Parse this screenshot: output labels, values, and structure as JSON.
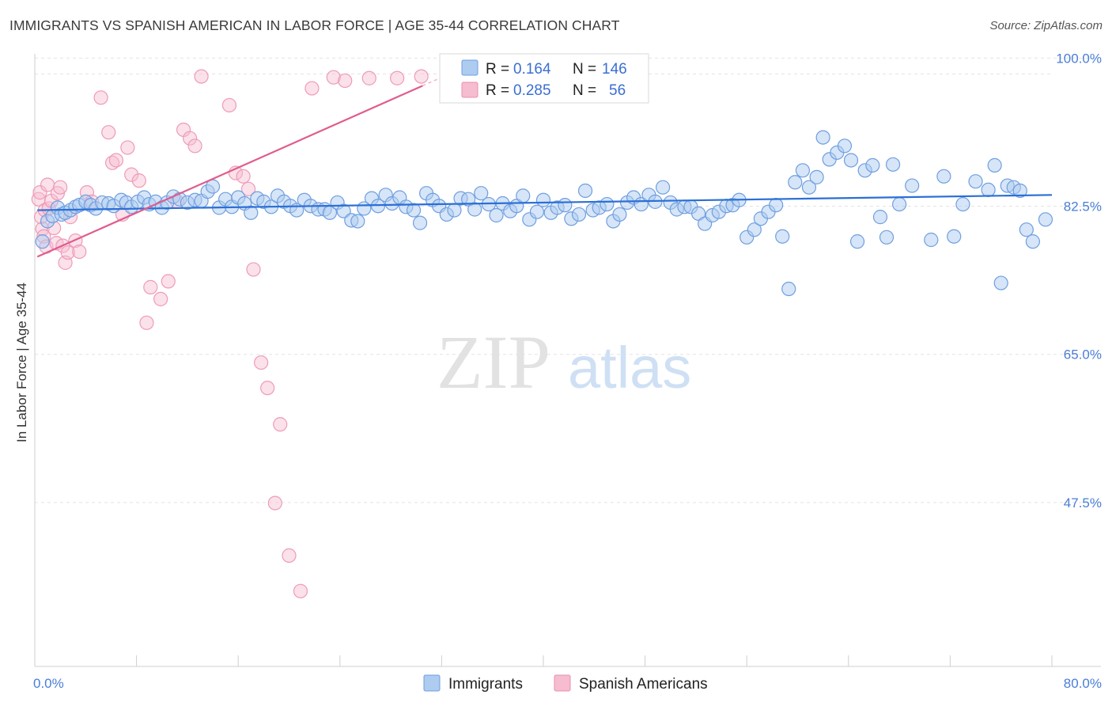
{
  "header": {
    "title": "IMMIGRANTS VS SPANISH AMERICAN IN LABOR FORCE | AGE 35-44 CORRELATION CHART",
    "source": "Source: ZipAtlas.com"
  },
  "watermark": {
    "zip": "ZIP",
    "atlas": "atlas"
  },
  "legend": {
    "rows": [
      {
        "r_label": "R =",
        "r_value": "0.164",
        "n_label": "N =",
        "n_value": "146",
        "color": "#aecbf0"
      },
      {
        "r_label": "R =",
        "r_value": "0.285",
        "n_label": "N =",
        "n_value": "56",
        "color": "#f6bcd0"
      }
    ]
  },
  "bottom_legend": [
    "Immigrants",
    "Spanish Americans"
  ],
  "chart_data": {
    "type": "scatter",
    "title": "IMMIGRANTS VS SPANISH AMERICAN IN LABOR FORCE | AGE 35-44 CORRELATION CHART",
    "xlabel": "",
    "ylabel": "In Labor Force | Age 35-44",
    "xlim": [
      0,
      80
    ],
    "ylim": [
      30,
      102
    ],
    "x_tick_labels": [
      "0.0%",
      "80.0%"
    ],
    "y_ticks": [
      47.5,
      65.0,
      82.5,
      100.0
    ],
    "y_tick_labels": [
      "47.5%",
      "65.0%",
      "82.5%",
      "100.0%"
    ],
    "grid": "horizontal dashed",
    "legend_position": "top-center",
    "colors": {
      "immigrants": "#5b93de",
      "immigrants_fill": "#aecbf0",
      "spanish": "#e86d9a",
      "spanish_fill": "#f6bcd0",
      "trend_blue": "#2b6fd6",
      "trend_pink": "#e05c8e"
    },
    "series": [
      {
        "name": "Immigrants",
        "R": 0.164,
        "N": 146,
        "trend": {
          "x": [
            0.2,
            80
          ],
          "y": [
            83.9,
            85.7
          ]
        },
        "points": [
          [
            0.6,
            80.2
          ],
          [
            1.0,
            82.6
          ],
          [
            1.4,
            83.2
          ],
          [
            1.8,
            84.2
          ],
          [
            2.1,
            83.4
          ],
          [
            2.4,
            83.6
          ],
          [
            2.8,
            83.9
          ],
          [
            3.2,
            84.3
          ],
          [
            3.5,
            84.5
          ],
          [
            4.0,
            84.9
          ],
          [
            4.4,
            84.5
          ],
          [
            4.8,
            84.1
          ],
          [
            5.3,
            84.8
          ],
          [
            5.8,
            84.7
          ],
          [
            6.2,
            84.4
          ],
          [
            6.8,
            85.1
          ],
          [
            7.2,
            84.8
          ],
          [
            7.6,
            84.3
          ],
          [
            8.1,
            84.9
          ],
          [
            8.6,
            85.4
          ],
          [
            9.0,
            84.6
          ],
          [
            9.5,
            84.9
          ],
          [
            10.0,
            84.2
          ],
          [
            10.4,
            84.8
          ],
          [
            10.9,
            85.5
          ],
          [
            11.4,
            85.2
          ],
          [
            12.0,
            84.8
          ],
          [
            12.6,
            85.1
          ],
          [
            13.1,
            85.0
          ],
          [
            13.6,
            86.1
          ],
          [
            14.0,
            86.7
          ],
          [
            14.5,
            84.2
          ],
          [
            15.0,
            85.2
          ],
          [
            15.5,
            84.3
          ],
          [
            16.0,
            85.4
          ],
          [
            16.5,
            84.7
          ],
          [
            17.0,
            83.6
          ],
          [
            17.5,
            85.3
          ],
          [
            18.0,
            84.9
          ],
          [
            18.6,
            84.3
          ],
          [
            19.1,
            85.6
          ],
          [
            19.6,
            84.9
          ],
          [
            20.1,
            84.4
          ],
          [
            20.6,
            83.9
          ],
          [
            21.2,
            85.1
          ],
          [
            21.7,
            84.4
          ],
          [
            22.3,
            84.0
          ],
          [
            22.8,
            84.0
          ],
          [
            23.2,
            83.6
          ],
          [
            23.8,
            84.8
          ],
          [
            24.3,
            83.8
          ],
          [
            24.9,
            82.7
          ],
          [
            25.4,
            82.6
          ],
          [
            25.9,
            84.1
          ],
          [
            26.5,
            85.3
          ],
          [
            27.0,
            84.4
          ],
          [
            27.6,
            85.7
          ],
          [
            28.1,
            84.7
          ],
          [
            28.7,
            85.4
          ],
          [
            29.2,
            84.3
          ],
          [
            29.8,
            83.9
          ],
          [
            30.3,
            82.4
          ],
          [
            30.8,
            85.9
          ],
          [
            31.3,
            85.1
          ],
          [
            31.8,
            84.4
          ],
          [
            32.4,
            83.4
          ],
          [
            33.0,
            83.9
          ],
          [
            33.5,
            85.3
          ],
          [
            34.1,
            85.2
          ],
          [
            34.6,
            84.0
          ],
          [
            35.1,
            85.9
          ],
          [
            35.7,
            84.6
          ],
          [
            36.3,
            83.3
          ],
          [
            36.8,
            84.7
          ],
          [
            37.4,
            83.8
          ],
          [
            37.9,
            84.4
          ],
          [
            38.4,
            85.6
          ],
          [
            38.9,
            82.8
          ],
          [
            39.5,
            83.7
          ],
          [
            40.0,
            85.1
          ],
          [
            40.6,
            83.6
          ],
          [
            41.1,
            84.2
          ],
          [
            41.7,
            84.5
          ],
          [
            42.2,
            82.9
          ],
          [
            42.8,
            83.4
          ],
          [
            43.3,
            86.2
          ],
          [
            43.9,
            83.9
          ],
          [
            44.4,
            84.2
          ],
          [
            45.0,
            84.6
          ],
          [
            45.5,
            82.6
          ],
          [
            46.0,
            83.4
          ],
          [
            46.6,
            84.8
          ],
          [
            47.1,
            85.4
          ],
          [
            47.7,
            84.6
          ],
          [
            48.3,
            85.7
          ],
          [
            48.8,
            84.9
          ],
          [
            49.4,
            86.6
          ],
          [
            50.0,
            84.8
          ],
          [
            50.5,
            84.0
          ],
          [
            51.1,
            84.3
          ],
          [
            51.6,
            84.3
          ],
          [
            52.2,
            83.5
          ],
          [
            52.7,
            82.3
          ],
          [
            53.3,
            83.3
          ],
          [
            53.8,
            83.7
          ],
          [
            54.4,
            84.4
          ],
          [
            54.9,
            84.5
          ],
          [
            55.4,
            85.1
          ],
          [
            56.0,
            80.7
          ],
          [
            56.6,
            81.6
          ],
          [
            57.1,
            82.9
          ],
          [
            57.7,
            83.7
          ],
          [
            58.3,
            84.5
          ],
          [
            58.8,
            80.8
          ],
          [
            59.3,
            74.6
          ],
          [
            59.8,
            87.2
          ],
          [
            60.4,
            88.6
          ],
          [
            60.9,
            86.6
          ],
          [
            61.5,
            87.8
          ],
          [
            62.0,
            92.5
          ],
          [
            62.5,
            89.9
          ],
          [
            63.1,
            90.7
          ],
          [
            63.7,
            91.5
          ],
          [
            64.2,
            89.8
          ],
          [
            64.7,
            80.2
          ],
          [
            65.3,
            88.6
          ],
          [
            65.9,
            89.2
          ],
          [
            66.5,
            83.1
          ],
          [
            67.0,
            80.7
          ],
          [
            67.5,
            89.3
          ],
          [
            68.0,
            84.6
          ],
          [
            69.0,
            86.8
          ],
          [
            70.5,
            80.4
          ],
          [
            71.5,
            87.9
          ],
          [
            72.3,
            80.8
          ],
          [
            73.0,
            84.6
          ],
          [
            74.0,
            87.3
          ],
          [
            75.0,
            86.3
          ],
          [
            75.5,
            89.2
          ],
          [
            76.0,
            75.3
          ],
          [
            76.5,
            86.8
          ],
          [
            77.0,
            86.6
          ],
          [
            77.5,
            86.2
          ],
          [
            78.0,
            81.6
          ],
          [
            78.5,
            80.2
          ],
          [
            79.5,
            82.8
          ]
        ]
      },
      {
        "name": "Spanish Americans",
        "R": 0.285,
        "N": 56,
        "trend": {
          "x": [
            0.2,
            30.5
          ],
          "y": [
            78.4,
            98.6
          ]
        },
        "points": [
          [
            0.3,
            85.2
          ],
          [
            0.4,
            86.0
          ],
          [
            0.5,
            83.1
          ],
          [
            0.6,
            81.7
          ],
          [
            0.7,
            80.8
          ],
          [
            0.8,
            83.9
          ],
          [
            0.9,
            79.6
          ],
          [
            1.0,
            86.9
          ],
          [
            1.1,
            84.1
          ],
          [
            1.3,
            85.0
          ],
          [
            1.5,
            81.8
          ],
          [
            1.7,
            80.0
          ],
          [
            1.8,
            85.9
          ],
          [
            2.0,
            86.6
          ],
          [
            2.2,
            79.7
          ],
          [
            2.4,
            77.7
          ],
          [
            2.6,
            78.9
          ],
          [
            2.8,
            83.1
          ],
          [
            3.2,
            80.3
          ],
          [
            3.5,
            79.0
          ],
          [
            4.1,
            86.0
          ],
          [
            4.5,
            84.9
          ],
          [
            5.2,
            97.2
          ],
          [
            5.8,
            93.1
          ],
          [
            6.1,
            89.5
          ],
          [
            6.4,
            89.8
          ],
          [
            6.9,
            83.4
          ],
          [
            7.3,
            91.3
          ],
          [
            7.6,
            88.1
          ],
          [
            8.2,
            87.4
          ],
          [
            8.8,
            70.6
          ],
          [
            9.1,
            74.8
          ],
          [
            9.9,
            73.4
          ],
          [
            10.5,
            75.5
          ],
          [
            11.2,
            84.9
          ],
          [
            11.7,
            93.4
          ],
          [
            12.2,
            92.4
          ],
          [
            12.6,
            91.5
          ],
          [
            13.1,
            99.7
          ],
          [
            15.3,
            96.3
          ],
          [
            15.8,
            88.3
          ],
          [
            16.4,
            87.9
          ],
          [
            16.8,
            86.4
          ],
          [
            17.2,
            76.9
          ],
          [
            17.8,
            65.9
          ],
          [
            18.3,
            62.9
          ],
          [
            18.9,
            49.3
          ],
          [
            19.3,
            58.6
          ],
          [
            20.0,
            43.1
          ],
          [
            20.9,
            38.9
          ],
          [
            21.8,
            98.3
          ],
          [
            23.5,
            99.6
          ],
          [
            24.4,
            99.2
          ],
          [
            26.3,
            99.5
          ],
          [
            28.5,
            99.5
          ],
          [
            30.4,
            99.7
          ]
        ]
      }
    ]
  }
}
